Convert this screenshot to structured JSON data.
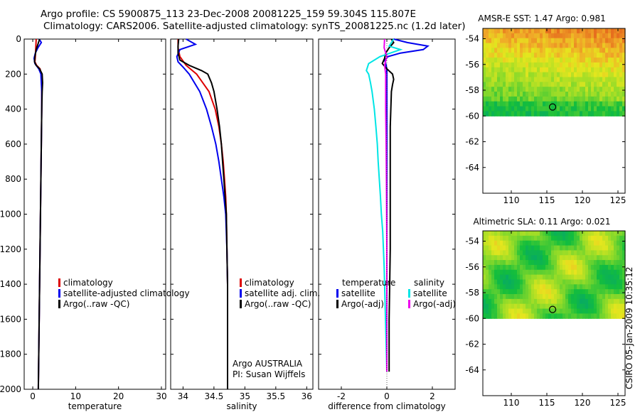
{
  "title_line1": "Argo profile: CS 5900875_113 23-Dec-2008 20081225_159 59.304S 115.807E",
  "title_line2": "Climatology: CARS2006. Satellite-adjusted climatology: synTS_20081225.nc (1.2d later)",
  "side_stamp": "CSIRO 05-Jan-2009 10:35:12",
  "colors": {
    "climatology": "#dd0000",
    "satellite": "#0000ee",
    "argo": "#000000",
    "sat_salinity": "#00e5e5",
    "argo_salinity": "#ee00ee"
  },
  "chart_data": [
    {
      "type": "line",
      "xlabel": "temperature",
      "ylabel": "",
      "xlim": [
        -2,
        31
      ],
      "ylim": [
        2000,
        0
      ],
      "y_reversed": true,
      "xticks": [
        0,
        10,
        20,
        30
      ],
      "yticks": [
        0,
        200,
        400,
        600,
        800,
        1000,
        1200,
        1400,
        1600,
        1800,
        2000
      ],
      "legend": [
        "climatology",
        "satellite-adjusted climatology",
        "Argo(..raw -QC)"
      ],
      "series": [
        {
          "name": "climatology",
          "color": "#dd0000",
          "depth": [
            0,
            50,
            100,
            130,
            150,
            170,
            200,
            300,
            400,
            600,
            800,
            1000,
            1200,
            1400,
            1600,
            1800,
            2000
          ],
          "values": [
            0.8,
            0.7,
            0.6,
            0.5,
            0.9,
            1.7,
            2.0,
            2.1,
            2.1,
            2.0,
            1.9,
            1.8,
            1.7,
            1.6,
            1.5,
            1.4,
            1.3
          ]
        },
        {
          "name": "satellite-adjusted climatology",
          "color": "#0000ee",
          "depth": [
            0,
            20,
            50,
            80,
            110,
            140,
            170,
            200,
            300,
            400,
            600,
            800,
            1000,
            1200,
            1400,
            1600,
            1800,
            2000
          ],
          "values": [
            1.5,
            2.0,
            1.2,
            0.6,
            0.3,
            0.5,
            1.4,
            1.9,
            2.1,
            2.1,
            2.0,
            1.9,
            1.8,
            1.7,
            1.6,
            1.5,
            1.4,
            1.3
          ]
        },
        {
          "name": "Argo(..raw -QC)",
          "color": "#000000",
          "depth": [
            0,
            30,
            60,
            100,
            130,
            150,
            170,
            200,
            250,
            300,
            400,
            600,
            800,
            1000,
            1200,
            1400,
            1600,
            1800,
            2000
          ],
          "values": [
            1.6,
            1.2,
            0.8,
            0.5,
            0.4,
            0.8,
            1.6,
            2.2,
            2.3,
            2.2,
            2.1,
            2.0,
            1.9,
            1.8,
            1.7,
            1.6,
            1.5,
            1.4,
            1.3
          ]
        }
      ]
    },
    {
      "type": "line",
      "xlabel": "salinity",
      "ylabel": "",
      "xlim": [
        33.8,
        36.1
      ],
      "ylim": [
        2000,
        0
      ],
      "y_reversed": true,
      "xticks": [
        34,
        34.5,
        35,
        35.5,
        36
      ],
      "yticks": [
        0,
        200,
        400,
        600,
        800,
        1000,
        1200,
        1400,
        1600,
        1800,
        2000
      ],
      "legend": [
        "climatology",
        "satellite adj. clim.",
        "Argo(..raw -QC)"
      ],
      "annotations": [
        "Argo AUSTRALIA",
        "PI: Susan Wijffels"
      ],
      "series": [
        {
          "name": "climatology",
          "color": "#dd0000",
          "depth": [
            0,
            50,
            100,
            150,
            200,
            300,
            400,
            500,
            600,
            700,
            800,
            900,
            1000,
            1200,
            1400,
            1600,
            1800,
            2000
          ],
          "values": [
            33.92,
            33.92,
            33.95,
            34.05,
            34.22,
            34.42,
            34.52,
            34.58,
            34.62,
            34.65,
            34.67,
            34.69,
            34.7,
            34.71,
            34.72,
            34.72,
            34.72,
            34.72
          ]
        },
        {
          "name": "satellite adj. clim.",
          "color": "#0000ee",
          "depth": [
            0,
            30,
            60,
            100,
            130,
            160,
            200,
            300,
            400,
            500,
            600,
            700,
            800,
            900,
            1000,
            1200,
            1400,
            1600,
            1800,
            2000
          ],
          "values": [
            34.05,
            34.2,
            33.95,
            33.9,
            33.92,
            34.0,
            34.1,
            34.27,
            34.38,
            34.46,
            34.53,
            34.58,
            34.62,
            34.66,
            34.69,
            34.71,
            34.72,
            34.72,
            34.72,
            34.72
          ]
        },
        {
          "name": "Argo(..raw -QC)",
          "color": "#000000",
          "depth": [
            0,
            40,
            80,
            120,
            150,
            180,
            200,
            250,
            300,
            400,
            500,
            600,
            700,
            800,
            900,
            1000,
            1200,
            1400,
            1600,
            1800,
            2000
          ],
          "values": [
            33.93,
            33.92,
            33.92,
            33.95,
            34.1,
            34.3,
            34.4,
            34.46,
            34.5,
            34.55,
            34.59,
            34.62,
            34.64,
            34.66,
            34.68,
            34.7,
            34.71,
            34.72,
            34.72,
            34.72,
            34.72
          ]
        }
      ]
    },
    {
      "type": "line",
      "xlabel": "difference from climatology",
      "ylabel": "",
      "xlim": [
        -3,
        3
      ],
      "ylim": [
        2000,
        0
      ],
      "y_reversed": true,
      "xticks": [
        -2,
        0,
        2
      ],
      "yticks": [
        0,
        200,
        400,
        600,
        800,
        1000,
        1200,
        1400,
        1600,
        1800,
        2000
      ],
      "legend_groups": [
        {
          "header": "temperature",
          "items": [
            "satellite",
            "Argo(-adj)"
          ]
        },
        {
          "header": "salinity",
          "items": [
            "satellite",
            "Argo(-adj)"
          ]
        }
      ],
      "series": [
        {
          "name": "temperature satellite",
          "color": "#0000ee",
          "depth": [
            0,
            20,
            40,
            60,
            80,
            100,
            120,
            140,
            170,
            200,
            300,
            500,
            800,
            1200,
            1600,
            1900
          ],
          "values": [
            0.3,
            0.9,
            1.8,
            1.6,
            0.6,
            0.05,
            -0.1,
            -0.05,
            0.0,
            0.0,
            0.0,
            0.0,
            0.0,
            0.0,
            0.0,
            0.0
          ]
        },
        {
          "name": "temperature Argo(-adj)",
          "color": "#000000",
          "depth": [
            0,
            20,
            50,
            80,
            110,
            140,
            170,
            200,
            230,
            260,
            300,
            500,
            800,
            1200,
            1600,
            1900
          ],
          "values": [
            0.2,
            0.3,
            0.1,
            -0.05,
            -0.1,
            -0.2,
            0.0,
            0.25,
            0.3,
            0.25,
            0.2,
            0.15,
            0.15,
            0.15,
            0.1,
            0.1
          ]
        },
        {
          "name": "salinity satellite",
          "color": "#00e5e5",
          "depth": [
            0,
            40,
            60,
            100,
            140,
            180,
            200,
            250,
            300,
            400,
            500,
            600,
            700,
            800,
            900,
            1000,
            1100,
            1300,
            1600,
            1900
          ],
          "values": [
            0.3,
            0.1,
            0.6,
            -0.3,
            -0.8,
            -0.9,
            -0.8,
            -0.72,
            -0.65,
            -0.55,
            -0.48,
            -0.42,
            -0.38,
            -0.33,
            -0.28,
            -0.24,
            -0.18,
            -0.12,
            -0.06,
            0.0
          ]
        },
        {
          "name": "salinity Argo(-adj)",
          "color": "#ee00ee",
          "depth": [
            0,
            50,
            100,
            150,
            200,
            300,
            400,
            600,
            800,
            1000,
            1200,
            1500,
            1800,
            1900
          ],
          "values": [
            -0.1,
            -0.12,
            0.0,
            -0.1,
            -0.05,
            -0.05,
            -0.05,
            -0.03,
            -0.02,
            -0.01,
            0.0,
            0.0,
            0.0,
            0.0
          ]
        }
      ]
    },
    {
      "type": "heatmap",
      "title": "AMSR-E SST: 1.47 Argo: 0.981",
      "xlim": [
        106,
        126
      ],
      "ylim": [
        -66,
        -53.2
      ],
      "xticks": [
        110,
        115,
        120,
        125
      ],
      "yticks": [
        -54,
        -56,
        -58,
        -60,
        -62,
        -64
      ],
      "data_extent_lat": [
        -60,
        -53.2
      ],
      "argo_position": {
        "lon": 115.807,
        "lat": -59.304
      }
    },
    {
      "type": "heatmap",
      "title": "Altimetric SLA: 0.11 Argo: 0.021",
      "xlim": [
        106,
        126
      ],
      "ylim": [
        -66,
        -53.2
      ],
      "xticks": [
        110,
        115,
        120,
        125
      ],
      "yticks": [
        -54,
        -56,
        -58,
        -60,
        -62,
        -64
      ],
      "data_extent_lat": [
        -60,
        -53.2
      ],
      "argo_position": {
        "lon": 115.807,
        "lat": -59.304
      }
    }
  ]
}
